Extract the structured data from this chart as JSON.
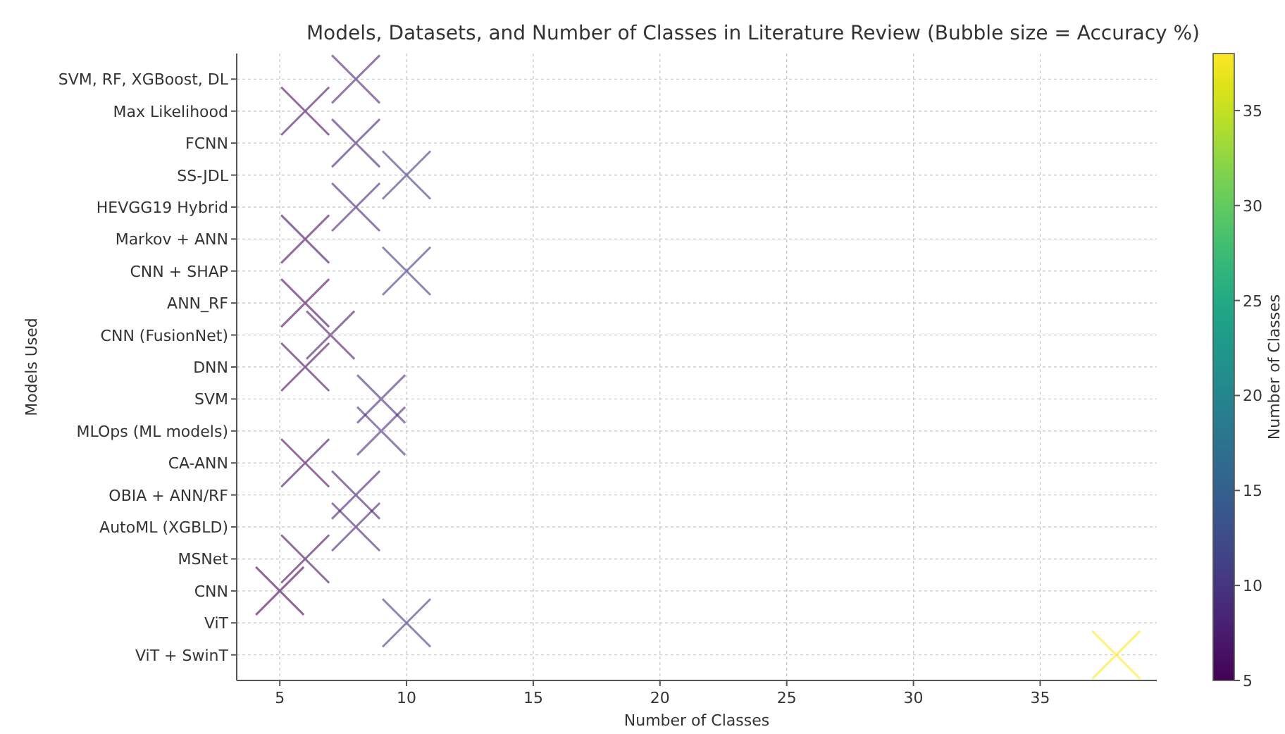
{
  "chart_data": {
    "type": "scatter",
    "title": "Models, Datasets, and Number of Classes in Literature Review (Bubble size = Accuracy %)",
    "xlabel": "Number of Classes",
    "ylabel": "Models Used",
    "clabel": "Number of Classes",
    "orientation": "horizontal",
    "categories": [
      "SVM, RF, XGBoost, DL",
      "Max Likelihood",
      "FCNN",
      "SS-JDL",
      "HEVGG19 Hybrid",
      "Markov + ANN",
      "CNN + SHAP",
      "ANN_RF",
      "CNN (FusionNet)",
      "DNN",
      "SVM",
      "MLOps (ML models)",
      "CA-ANN",
      "OBIA + ANN/RF",
      "AutoML (XGBLD)",
      "MSNet",
      "CNN",
      "ViT",
      "ViT + SwinT"
    ],
    "values": [
      8,
      6,
      8,
      10,
      8,
      6,
      10,
      6,
      7,
      6,
      9,
      9,
      6,
      8,
      8,
      6,
      5,
      10,
      38
    ],
    "cvalues": [
      8,
      6,
      8,
      10,
      8,
      6,
      10,
      6,
      7,
      6,
      9,
      9,
      6,
      8,
      8,
      6,
      5,
      10,
      38
    ],
    "xlim": [
      3.3,
      39.6
    ],
    "xticks": [
      5,
      10,
      15,
      20,
      25,
      30,
      35
    ],
    "clim": [
      5,
      38
    ],
    "cticks": [
      5,
      10,
      15,
      20,
      25,
      30,
      35
    ],
    "marker": "cross",
    "grid": true
  }
}
